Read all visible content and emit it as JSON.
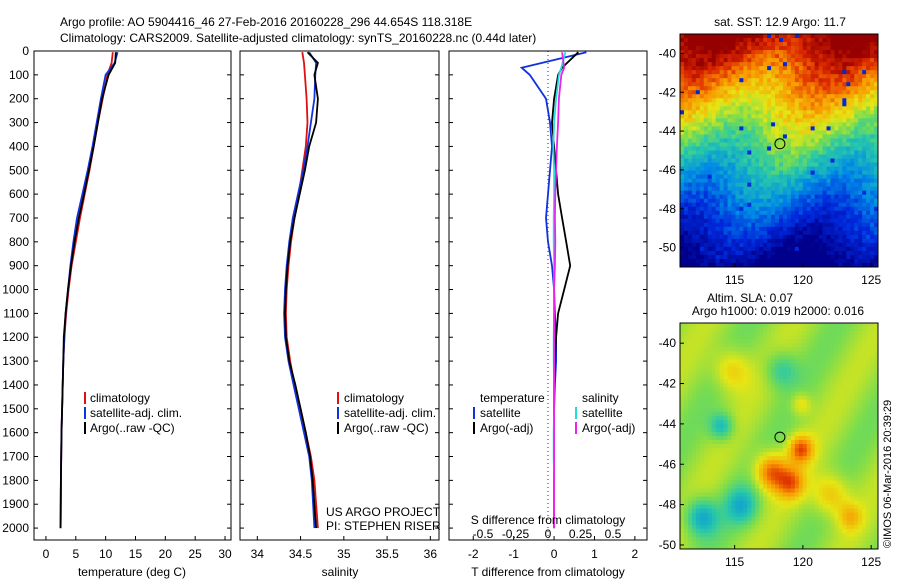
{
  "header": {
    "line1": "Argo profile: AO 5904416_46 27-Feb-2016 20160228_296 44.654S 118.318E",
    "line2": "Climatology: CARS2009. Satellite-adjusted climatology: synTS_20160228.nc (0.44d later)"
  },
  "colors": {
    "climatology": "#dd1111",
    "satellite": "#1133dd",
    "argo": "#000000",
    "salinity_satellite": "#22dddd",
    "salinity_argo": "#ee22ee"
  },
  "panels": {
    "temperature": {
      "xlabel": "temperature (deg C)",
      "xticks": [
        "0",
        "5",
        "10",
        "15",
        "20",
        "25",
        "30"
      ],
      "legend": [
        "climatology",
        "satellite-adj. clim.",
        "Argo(..raw -QC)"
      ]
    },
    "salinity": {
      "xlabel": "salinity",
      "xticks": [
        "34",
        "34.5",
        "35",
        "35.5",
        "36"
      ],
      "legend": [
        "climatology",
        "satellite-adj. clim.",
        "Argo(..raw -QC)"
      ],
      "credit1": "US ARGO PROJECT",
      "credit2": "PI: STEPHEN RISER"
    },
    "difference": {
      "xlabel_bottom": "T difference from climatology",
      "xticks_bottom": [
        "-2",
        "-1",
        "0",
        "1",
        "2"
      ],
      "xlabel_top": "S difference from climatology",
      "xticks_top": [
        "-0.5",
        "-0.25",
        "0",
        "0.25",
        "0.5"
      ],
      "legend_t_title": "temperature",
      "legend_s_title": "salinity",
      "legend_t": [
        "satellite",
        "Argo(-adj)"
      ],
      "legend_s": [
        "satellite",
        "Argo(-adj)"
      ]
    },
    "yticks": [
      "0",
      "100",
      "200",
      "300",
      "400",
      "500",
      "600",
      "700",
      "800",
      "900",
      "1000",
      "1100",
      "1200",
      "1300",
      "1400",
      "1500",
      "1600",
      "1700",
      "1800",
      "1900",
      "2000"
    ]
  },
  "maps": {
    "sst_title": "sat. SST: 12.9 Argo: 11.7",
    "sla_title1": "Altim. SLA: 0.07",
    "sla_title2": "Argo h1000: 0.019 h2000: 0.016",
    "yticks": [
      "-40",
      "-42",
      "-44",
      "-46",
      "-48",
      "-50"
    ],
    "xticks": [
      "115",
      "120",
      "125"
    ],
    "float_lon": 118.318,
    "float_lat": -44.654,
    "credit": "©IMOS 06-Mar-2016 20:39:29"
  },
  "chart_data": [
    {
      "type": "line",
      "panel": "temperature",
      "xlim": [
        -2,
        31
      ],
      "ylim": [
        2050,
        0
      ],
      "ylabel": "",
      "xlabel": "temperature (deg C)",
      "series": [
        {
          "name": "climatology",
          "x": [
            11.2,
            11.0,
            10.3,
            9.5,
            8.7,
            8.0,
            7.3,
            6.5,
            5.7,
            5.0,
            4.3,
            3.8,
            3.4,
            3.1,
            2.9,
            2.8,
            2.7,
            2.6,
            2.55,
            2.5,
            2.45
          ],
          "y": [
            5,
            50,
            100,
            200,
            300,
            400,
            500,
            600,
            700,
            800,
            900,
            1000,
            1100,
            1200,
            1300,
            1400,
            1500,
            1600,
            1700,
            1800,
            2000
          ]
        },
        {
          "name": "satellite-adj. clim.",
          "x": [
            12.0,
            11.5,
            10.0,
            9.2,
            8.5,
            7.8,
            7.0,
            6.1,
            5.2,
            4.6,
            4.1,
            3.7,
            3.3,
            3.1,
            2.9,
            2.8,
            2.7,
            2.6,
            2.55,
            2.5,
            2.45
          ],
          "y": [
            5,
            50,
            100,
            200,
            300,
            400,
            500,
            600,
            700,
            800,
            900,
            1000,
            1100,
            1200,
            1300,
            1400,
            1500,
            1600,
            1700,
            1800,
            2000
          ]
        },
        {
          "name": "Argo(..raw -QC)",
          "x": [
            11.7,
            11.6,
            10.5,
            9.4,
            8.7,
            8.0,
            7.2,
            6.4,
            5.5,
            4.8,
            4.2,
            3.7,
            3.3,
            3.0,
            2.9,
            2.8,
            2.7,
            2.6,
            2.55,
            2.5,
            2.45
          ],
          "y": [
            5,
            50,
            100,
            200,
            300,
            400,
            500,
            600,
            700,
            800,
            900,
            1000,
            1100,
            1200,
            1300,
            1400,
            1500,
            1600,
            1700,
            1800,
            2000
          ]
        }
      ]
    },
    {
      "type": "line",
      "panel": "salinity",
      "xlim": [
        33.8,
        36.1
      ],
      "ylim": [
        2050,
        0
      ],
      "xlabel": "salinity",
      "series": [
        {
          "name": "climatology",
          "x": [
            34.52,
            34.54,
            34.55,
            34.57,
            34.58,
            34.56,
            34.52,
            34.48,
            34.43,
            34.39,
            34.36,
            34.34,
            34.33,
            34.34,
            34.38,
            34.43,
            34.5,
            34.56,
            34.62,
            34.66,
            34.7
          ],
          "y": [
            5,
            50,
            100,
            200,
            300,
            400,
            500,
            600,
            700,
            800,
            900,
            1000,
            1100,
            1200,
            1300,
            1400,
            1500,
            1600,
            1700,
            1800,
            2000
          ]
        },
        {
          "name": "satellite-adj. clim.",
          "x": [
            34.6,
            34.68,
            34.67,
            34.66,
            34.62,
            34.58,
            34.53,
            34.47,
            34.41,
            34.37,
            34.34,
            34.32,
            34.31,
            34.32,
            34.36,
            34.42,
            34.48,
            34.54,
            34.6,
            34.63,
            34.66
          ],
          "y": [
            5,
            50,
            100,
            200,
            300,
            400,
            500,
            600,
            700,
            800,
            900,
            1000,
            1100,
            1200,
            1300,
            1400,
            1500,
            1600,
            1700,
            1800,
            2000
          ]
        },
        {
          "name": "Argo(..raw -QC)",
          "x": [
            34.58,
            34.7,
            34.66,
            34.7,
            34.68,
            34.6,
            34.55,
            34.49,
            34.43,
            34.38,
            34.35,
            34.33,
            34.32,
            34.33,
            34.37,
            34.44,
            34.5,
            34.56,
            34.61,
            34.64,
            34.68
          ],
          "y": [
            5,
            50,
            100,
            200,
            300,
            400,
            500,
            600,
            700,
            800,
            900,
            1000,
            1100,
            1200,
            1300,
            1400,
            1500,
            1600,
            1700,
            1800,
            2000
          ]
        }
      ]
    },
    {
      "type": "line",
      "panel": "difference",
      "xlim": [
        -2.6,
        2.3
      ],
      "ylim": [
        2050,
        0
      ],
      "xlabel": "T difference from climatology",
      "series": [
        {
          "name": "temperature satellite",
          "x": [
            0.8,
            -0.8,
            -0.6,
            -0.2,
            -0.1,
            -0.05,
            -0.1,
            -0.15,
            -0.2,
            -0.15,
            -0.05,
            0.0,
            0.02,
            0.05,
            0.05,
            0.02,
            0.0,
            0.0,
            0.0,
            0.0,
            0.0
          ],
          "y": [
            5,
            70,
            100,
            200,
            300,
            400,
            500,
            600,
            700,
            800,
            900,
            1000,
            1100,
            1200,
            1300,
            1400,
            1500,
            1600,
            1700,
            1800,
            2000
          ]
        },
        {
          "name": "temperature Argo(-adj)",
          "x": [
            0.6,
            0.2,
            0.1,
            0.0,
            -0.05,
            0.0,
            0.05,
            0.1,
            0.2,
            0.3,
            0.4,
            0.25,
            0.1,
            0.05,
            0.02,
            0.0,
            0.0,
            0.0,
            0.0,
            0.0,
            0.0
          ],
          "y": [
            5,
            70,
            100,
            200,
            300,
            400,
            500,
            600,
            700,
            800,
            900,
            1000,
            1100,
            1200,
            1300,
            1400,
            1500,
            1600,
            1700,
            1800,
            2000
          ]
        },
        {
          "name": "salinity satellite",
          "x": [
            0.28,
            0.18,
            0.12,
            0.05,
            0.0,
            -0.02,
            0.0,
            0.0,
            -0.01,
            -0.01,
            0.0,
            0.0,
            0.0,
            -0.01,
            -0.01,
            0.0,
            0.0,
            -0.01,
            -0.01,
            0.0,
            0.0
          ],
          "y": [
            5,
            70,
            100,
            200,
            300,
            400,
            500,
            600,
            700,
            800,
            900,
            1000,
            1100,
            1200,
            1300,
            1400,
            1500,
            1600,
            1700,
            1800,
            2000
          ]
        },
        {
          "name": "salinity Argo(-adj)",
          "x": [
            0.2,
            0.25,
            0.18,
            0.12,
            0.1,
            0.07,
            0.05,
            0.03,
            0.02,
            0.03,
            0.02,
            0.0,
            0.0,
            0.0,
            0.0,
            0.0,
            0.0,
            0.0,
            0.0,
            0.0,
            0.0
          ],
          "y": [
            5,
            70,
            100,
            200,
            300,
            400,
            500,
            600,
            700,
            800,
            900,
            1000,
            1100,
            1200,
            1300,
            1400,
            1500,
            1600,
            1700,
            1800,
            2000
          ]
        }
      ]
    },
    {
      "type": "heatmap",
      "panel": "sst-map",
      "title": "sat. SST: 12.9 Argo: 11.7",
      "xlim": [
        111,
        125.5
      ],
      "ylim": [
        -51,
        -39
      ]
    },
    {
      "type": "heatmap",
      "panel": "sla-map",
      "title": "Altim. SLA: 0.07",
      "xlim": [
        111,
        125.5
      ],
      "ylim": [
        -50.2,
        -39
      ]
    }
  ]
}
